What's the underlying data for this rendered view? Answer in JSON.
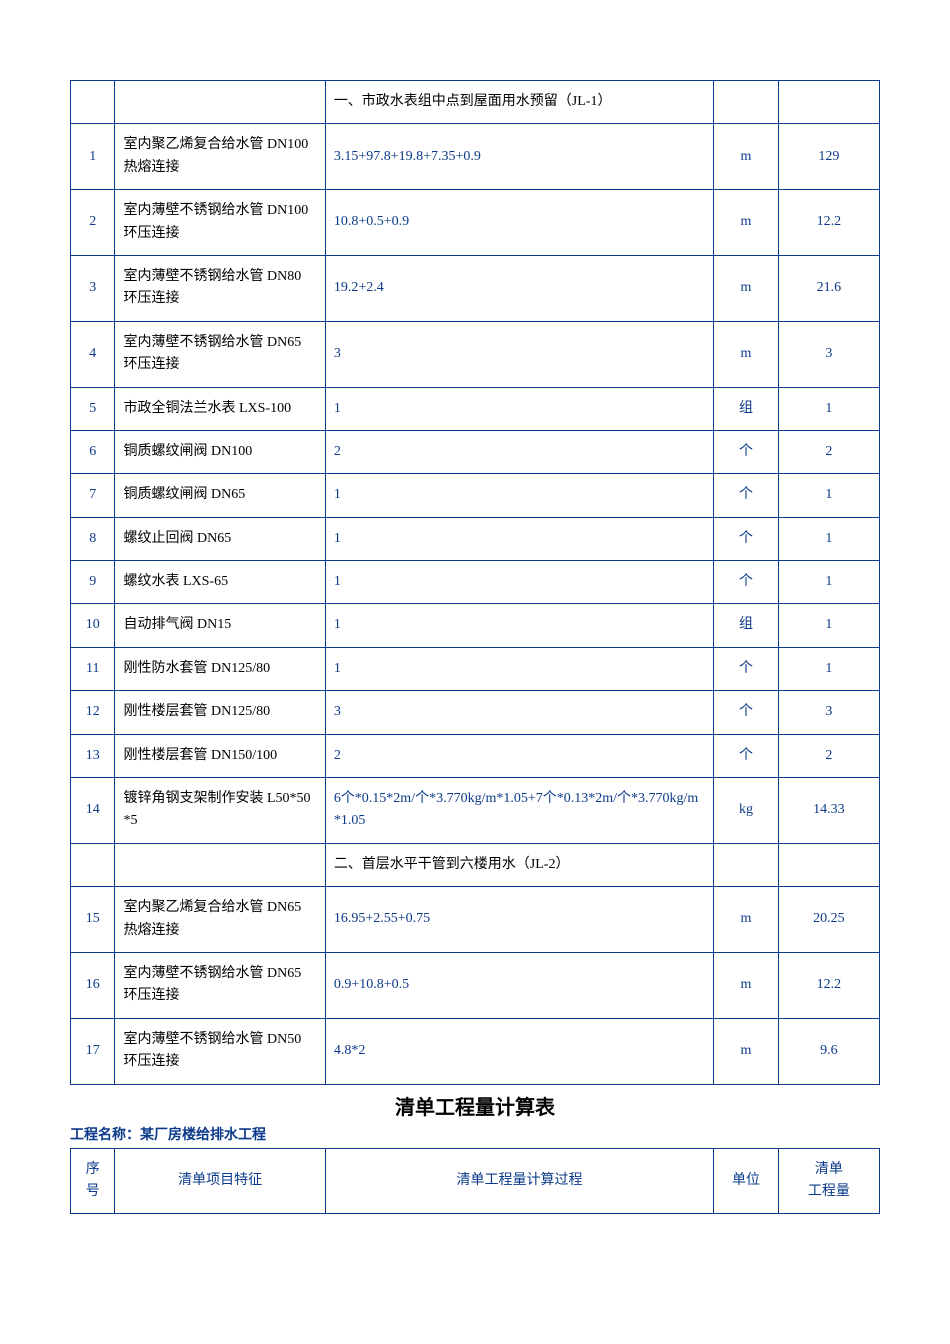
{
  "colors": {
    "border": "#0b3a8a",
    "text_blue": "#0b3a8a",
    "text_black": "#000000",
    "background": "#ffffff"
  },
  "font_size_pt": 10.5,
  "table1": {
    "sections": [
      {
        "title": "一、市政水表组中点到屋面用水预留（JL-1）"
      },
      {
        "title": "二、首层水平干管到六楼用水（JL-2）"
      }
    ],
    "rows_a": [
      {
        "idx": "1",
        "name": "室内聚乙烯复合给水管 DN100 热熔连接",
        "calc": "3.15+97.8+19.8+7.35+0.9",
        "unit": "m",
        "qty": "129"
      },
      {
        "idx": "2",
        "name": "室内薄壁不锈钢给水管 DN100 环压连接",
        "calc": "10.8+0.5+0.9",
        "unit": "m",
        "qty": "12.2"
      },
      {
        "idx": "3",
        "name": "室内薄壁不锈钢给水管 DN80 环压连接",
        "calc": "19.2+2.4",
        "unit": "m",
        "qty": "21.6"
      },
      {
        "idx": "4",
        "name": "室内薄壁不锈钢给水管 DN65 环压连接",
        "calc": "3",
        "unit": "m",
        "qty": "3"
      },
      {
        "idx": "5",
        "name": "市政全铜法兰水表 LXS-100",
        "calc": "1",
        "unit": "组",
        "qty": "1"
      },
      {
        "idx": "6",
        "name": "铜质螺纹闸阀 DN100",
        "calc": "2",
        "unit": "个",
        "qty": "2"
      },
      {
        "idx": "7",
        "name": "铜质螺纹闸阀 DN65",
        "calc": "1",
        "unit": "个",
        "qty": "1"
      },
      {
        "idx": "8",
        "name": "螺纹止回阀 DN65",
        "calc": "1",
        "unit": "个",
        "qty": "1"
      },
      {
        "idx": "9",
        "name": "螺纹水表 LXS-65",
        "calc": "1",
        "unit": "个",
        "qty": "1"
      },
      {
        "idx": "10",
        "name": "自动排气阀 DN15",
        "calc": "1",
        "unit": "组",
        "qty": "1"
      },
      {
        "idx": "11",
        "name": "刚性防水套管 DN125/80",
        "calc": "1",
        "unit": "个",
        "qty": "1"
      },
      {
        "idx": "12",
        "name": "刚性楼层套管 DN125/80",
        "calc": "3",
        "unit": "个",
        "qty": "3"
      },
      {
        "idx": "13",
        "name": "刚性楼层套管 DN150/100",
        "calc": "2",
        "unit": "个",
        "qty": "2"
      },
      {
        "idx": "14",
        "name": "镀锌角钢支架制作安装 L50*50*5",
        "calc": "6个*0.15*2m/个*3.770kg/m*1.05+7个*0.13*2m/个*3.770kg/m*1.05",
        "unit": "kg",
        "qty": "14.33"
      }
    ],
    "rows_b": [
      {
        "idx": "15",
        "name": "室内聚乙烯复合给水管 DN65 热熔连接",
        "calc": "16.95+2.55+0.75",
        "unit": "m",
        "qty": "20.25"
      },
      {
        "idx": "16",
        "name": "室内薄壁不锈钢给水管 DN65 环压连接",
        "calc": "0.9+10.8+0.5",
        "unit": "m",
        "qty": "12.2"
      },
      {
        "idx": "17",
        "name": "室内薄壁不锈钢给水管 DN50 环压连接",
        "calc": "4.8*2",
        "unit": "m",
        "qty": "9.6"
      }
    ]
  },
  "second_block": {
    "title": "清单工程量计算表",
    "project_label": "工程名称：某厂房楼给排水工程",
    "headers": {
      "c1": "序号",
      "c2": "清单项目特征",
      "c3": "清单工程量计算过程",
      "c4": "单位",
      "c5_line1": "清单",
      "c5_line2": "工程量"
    }
  }
}
